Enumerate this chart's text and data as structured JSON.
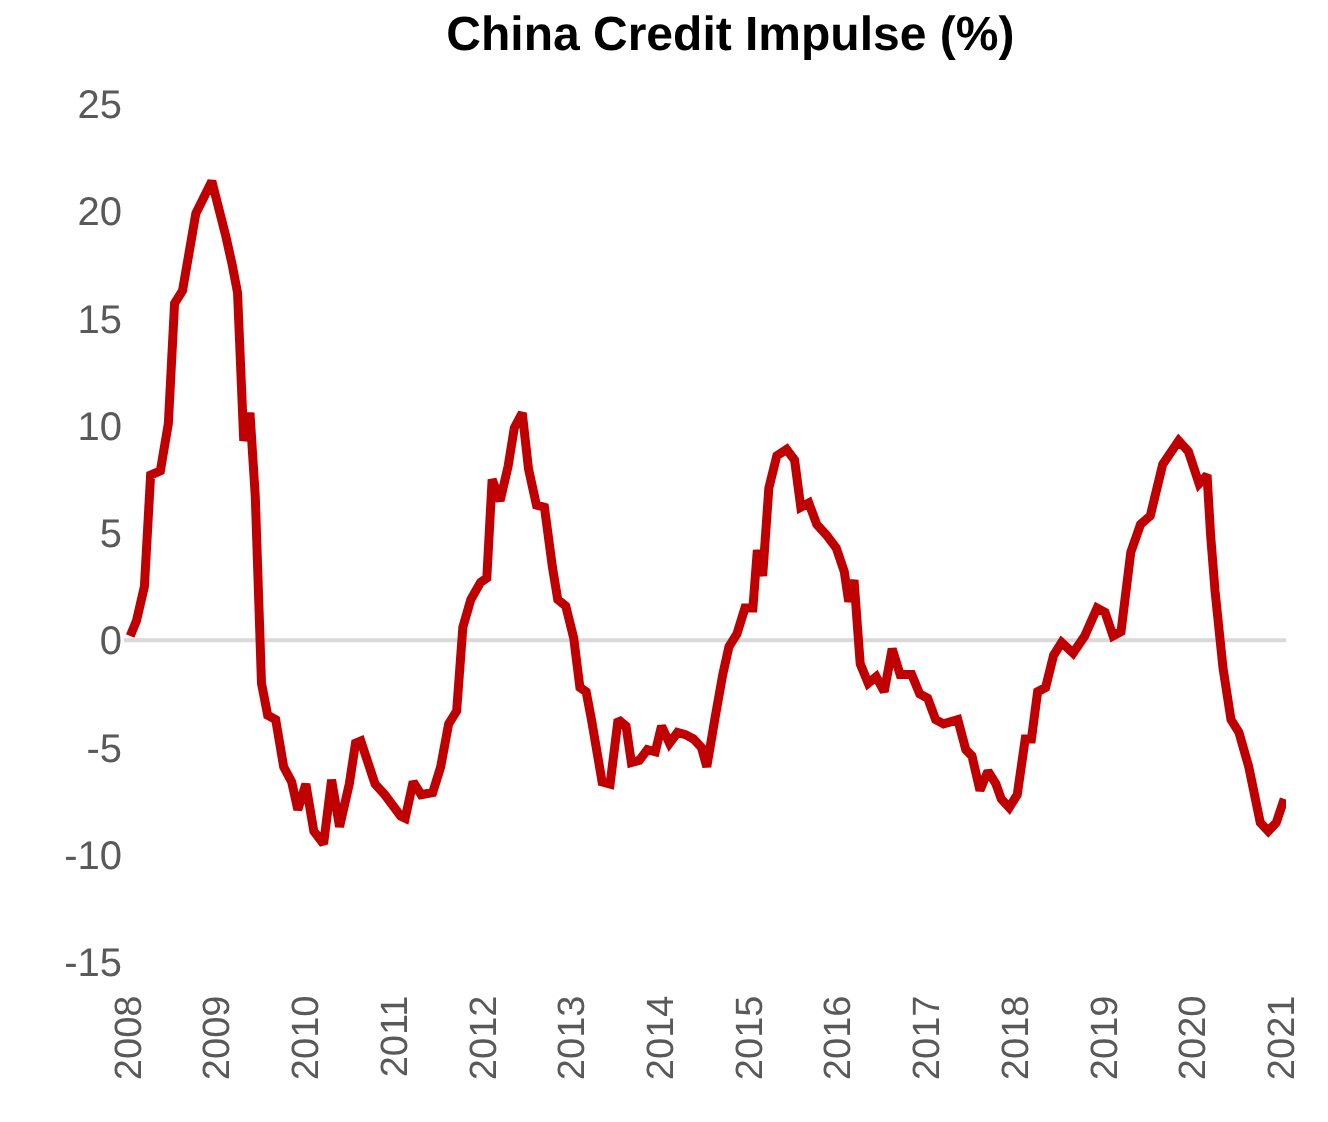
{
  "chart_data": {
    "type": "line",
    "title": "China Credit Impulse (%)",
    "x": [
      2008.02,
      2008.09,
      2008.18,
      2008.25,
      2008.36,
      2008.45,
      2008.52,
      2008.61,
      2008.76,
      2008.94,
      2009.1,
      2009.17,
      2009.23,
      2009.3,
      2009.37,
      2009.43,
      2009.5,
      2009.57,
      2009.66,
      2009.75,
      2009.84,
      2009.91,
      2010.0,
      2010.09,
      2010.2,
      2010.29,
      2010.38,
      2010.49,
      2010.56,
      2010.62,
      2010.78,
      2010.89,
      2011.07,
      2011.12,
      2011.21,
      2011.3,
      2011.43,
      2011.52,
      2011.61,
      2011.7,
      2011.77,
      2011.86,
      2011.97,
      2012.04,
      2012.1,
      2012.19,
      2012.28,
      2012.35,
      2012.44,
      2012.51,
      2012.6,
      2012.69,
      2012.78,
      2012.84,
      2012.93,
      2013.02,
      2013.09,
      2013.16,
      2013.22,
      2013.34,
      2013.43,
      2013.52,
      2013.61,
      2013.67,
      2013.76,
      2013.85,
      2013.94,
      2014.01,
      2014.1,
      2014.19,
      2014.28,
      2014.37,
      2014.46,
      2014.52,
      2014.61,
      2014.7,
      2014.77,
      2014.86,
      2014.95,
      2015.04,
      2015.09,
      2015.15,
      2015.22,
      2015.31,
      2015.42,
      2015.51,
      2015.58,
      2015.67,
      2015.76,
      2015.87,
      2015.98,
      2016.07,
      2016.12,
      2016.18,
      2016.25,
      2016.34,
      2016.43,
      2016.52,
      2016.61,
      2016.7,
      2016.83,
      2016.92,
      2017.01,
      2017.1,
      2017.19,
      2017.35,
      2017.44,
      2017.51,
      2017.6,
      2017.69,
      2017.78,
      2017.84,
      2017.93,
      2018.02,
      2018.11,
      2018.18,
      2018.25,
      2018.34,
      2018.43,
      2018.52,
      2018.65,
      2018.78,
      2018.92,
      2019.01,
      2019.1,
      2019.19,
      2019.3,
      2019.41,
      2019.52,
      2019.66,
      2019.84,
      2019.95,
      2020.07,
      2020.16,
      2020.2,
      2020.25,
      2020.34,
      2020.43,
      2020.52,
      2020.63,
      2020.76,
      2020.85,
      2020.94,
      2021.03
    ],
    "series": [
      {
        "color": "#c00000",
        "values": [
          0.2,
          0.9,
          2.5,
          7.7,
          7.9,
          10.1,
          15.7,
          16.3,
          19.9,
          21.4,
          18.8,
          17.5,
          16.2,
          9.3,
          10.6,
          6.7,
          -2.0,
          -3.5,
          -3.7,
          -5.9,
          -6.6,
          -7.9,
          -6.7,
          -8.9,
          -9.5,
          -6.5,
          -8.7,
          -6.7,
          -4.8,
          -4.7,
          -6.7,
          -7.2,
          -8.2,
          -8.3,
          -6.6,
          -7.2,
          -7.1,
          -5.9,
          -3.9,
          -3.3,
          0.6,
          1.9,
          2.7,
          2.9,
          7.5,
          6.5,
          8.1,
          9.9,
          10.6,
          8.0,
          6.3,
          6.2,
          3.4,
          1.9,
          1.6,
          0.1,
          -2.2,
          -2.4,
          -3.7,
          -6.6,
          -6.7,
          -3.7,
          -4.0,
          -5.7,
          -5.6,
          -5.1,
          -5.2,
          -4.0,
          -4.8,
          -4.3,
          -4.4,
          -4.6,
          -5.0,
          -5.9,
          -3.7,
          -1.6,
          -0.3,
          0.3,
          1.5,
          1.5,
          4.2,
          3.0,
          7.1,
          8.6,
          8.9,
          8.4,
          6.2,
          6.4,
          5.4,
          4.9,
          4.3,
          3.2,
          1.8,
          2.8,
          -1.1,
          -2.0,
          -1.7,
          -2.4,
          -0.4,
          -1.6,
          -1.6,
          -2.5,
          -2.7,
          -3.7,
          -3.9,
          -3.7,
          -5.1,
          -5.4,
          -7.0,
          -6.1,
          -6.7,
          -7.4,
          -7.8,
          -7.2,
          -4.6,
          -4.6,
          -2.4,
          -2.2,
          -0.7,
          -0.1,
          -0.6,
          0.2,
          1.5,
          1.3,
          0.2,
          0.4,
          4.1,
          5.4,
          5.8,
          8.2,
          9.3,
          8.8,
          7.3,
          7.7,
          4.9,
          2.3,
          -1.3,
          -3.7,
          -4.3,
          -5.9,
          -8.5,
          -8.9,
          -8.5,
          -7.4
        ]
      }
    ],
    "xlim": [
      2007.95,
      2021.05
    ],
    "xticks": [
      2008,
      2009,
      2010,
      2011,
      2012,
      2013,
      2014,
      2015,
      2016,
      2017,
      2018,
      2019,
      2020,
      2021
    ],
    "ylim": [
      -15,
      25
    ],
    "yticks": [
      -15,
      -10,
      -5,
      0,
      5,
      10,
      15,
      20,
      25
    ],
    "ref_lines": [
      {
        "axis": "y",
        "value": 0,
        "color": "#d9d9d9"
      }
    ],
    "grid": false,
    "marker": "none",
    "line_style": "solid"
  }
}
